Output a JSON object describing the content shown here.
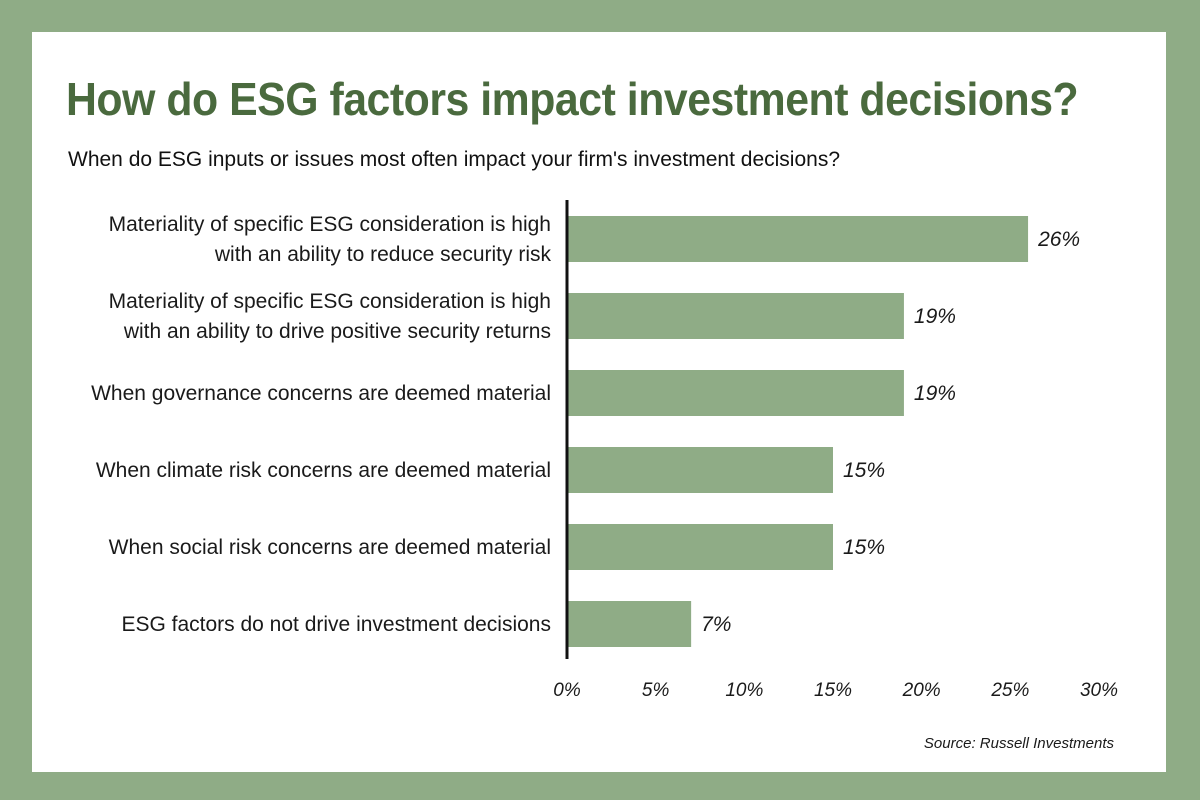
{
  "header": {
    "title": "How do ESG factors impact investment decisions?",
    "subtitle": "When do ESG inputs or issues most often impact your firm's investment decisions?"
  },
  "footer": {
    "source": "Source: Russell Investments"
  },
  "colors": {
    "frame": "#8fac86",
    "bar": "#8fac86",
    "title": "#4a6a3e",
    "axis": "#111111"
  },
  "chart_data": {
    "type": "bar",
    "orientation": "horizontal",
    "categories": [
      [
        "Materiality of specific ESG consideration is high",
        "with an ability to reduce security risk"
      ],
      [
        "Materiality of specific ESG consideration is high",
        "with an ability to drive positive security returns"
      ],
      [
        "When governance concerns are deemed material"
      ],
      [
        "When climate risk concerns are deemed material"
      ],
      [
        "When social risk concerns are deemed material"
      ],
      [
        "ESG factors do not drive investment decisions"
      ]
    ],
    "values": [
      26,
      19,
      19,
      15,
      15,
      7
    ],
    "value_labels": [
      "26%",
      "19%",
      "19%",
      "15%",
      "15%",
      "7%"
    ],
    "xlim": [
      0,
      30
    ],
    "x_ticks": [
      "0%",
      "5%",
      "10%",
      "15%",
      "20%",
      "25%",
      "30%"
    ],
    "grid": false,
    "legend": "none"
  }
}
